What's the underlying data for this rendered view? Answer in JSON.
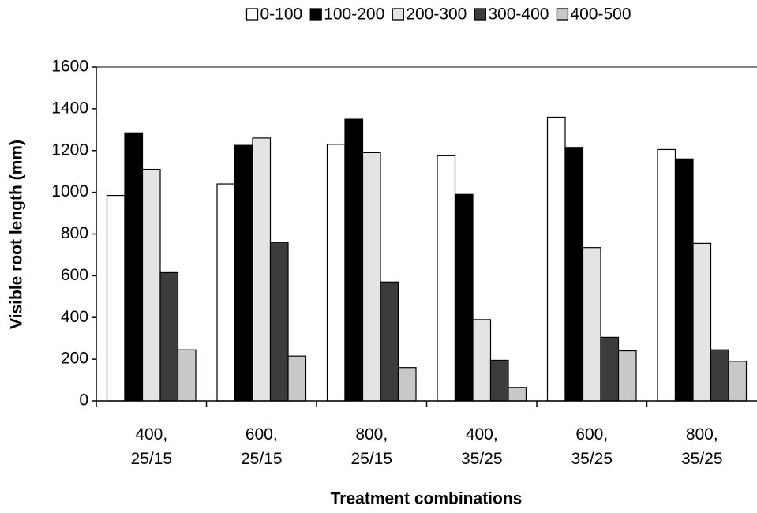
{
  "chart_data": {
    "type": "bar",
    "y_label": "Visible root length (mm)",
    "x_label": "Treatment combinations",
    "categories": [
      "400, 25/15",
      "600, 25/15",
      "800, 25/15",
      "400, 35/25",
      "600, 35/25",
      "800, 35/25"
    ],
    "series": [
      {
        "name": "0-100",
        "color": "#ffffff",
        "values": [
          985,
          1040,
          1230,
          1175,
          1360,
          1205
        ]
      },
      {
        "name": "100-200",
        "color": "#000000",
        "values": [
          1285,
          1225,
          1350,
          990,
          1215,
          1160
        ]
      },
      {
        "name": "200-300",
        "color": "#e4e4e4",
        "values": [
          1110,
          1260,
          1190,
          390,
          735,
          755
        ]
      },
      {
        "name": "300-400",
        "color": "#3c3c3c",
        "values": [
          615,
          760,
          570,
          195,
          305,
          245
        ]
      },
      {
        "name": "400-500",
        "color": "#c8c8c8",
        "values": [
          245,
          215,
          160,
          65,
          240,
          190
        ]
      }
    ],
    "ylim": [
      0,
      1600
    ],
    "yticks": [
      0,
      200,
      400,
      600,
      800,
      1000,
      1200,
      1400,
      1600
    ],
    "legend": "top"
  }
}
